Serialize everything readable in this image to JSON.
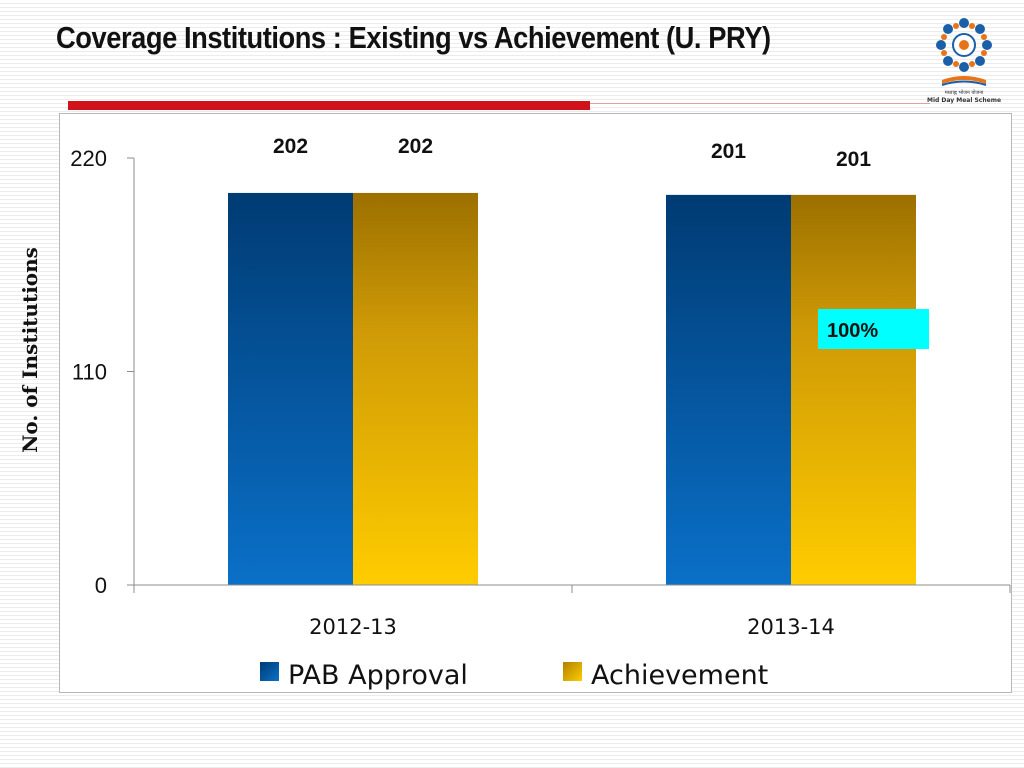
{
  "slide": {
    "title": "Coverage Institutions : Existing vs Achievement (U. PRY)",
    "logo": {
      "icon": "mid-day-meal-scheme-logo",
      "caption_hindi": "मध्याह्न भोजन योजना",
      "caption_english": "Mid Day Meal Scheme"
    }
  },
  "chart_data": {
    "type": "bar",
    "title": "",
    "xlabel": "",
    "ylabel": "No. of Institutions",
    "ylim": [
      0,
      220
    ],
    "yticks": [
      0,
      110,
      220
    ],
    "categories": [
      "2012-13",
      "2013-14"
    ],
    "series": [
      {
        "name": "PAB Approval",
        "values": [
          202,
          201
        ],
        "color": "#0a63b4"
      },
      {
        "name": "Achievement",
        "values": [
          202,
          201
        ],
        "color": "#f2c200"
      }
    ],
    "data_labels": [
      [
        "202",
        "201"
      ],
      [
        "202",
        "201"
      ]
    ],
    "annotations": [
      {
        "text": "100%",
        "background": "#00ffff"
      }
    ],
    "grid": false,
    "legend": "bottom"
  }
}
